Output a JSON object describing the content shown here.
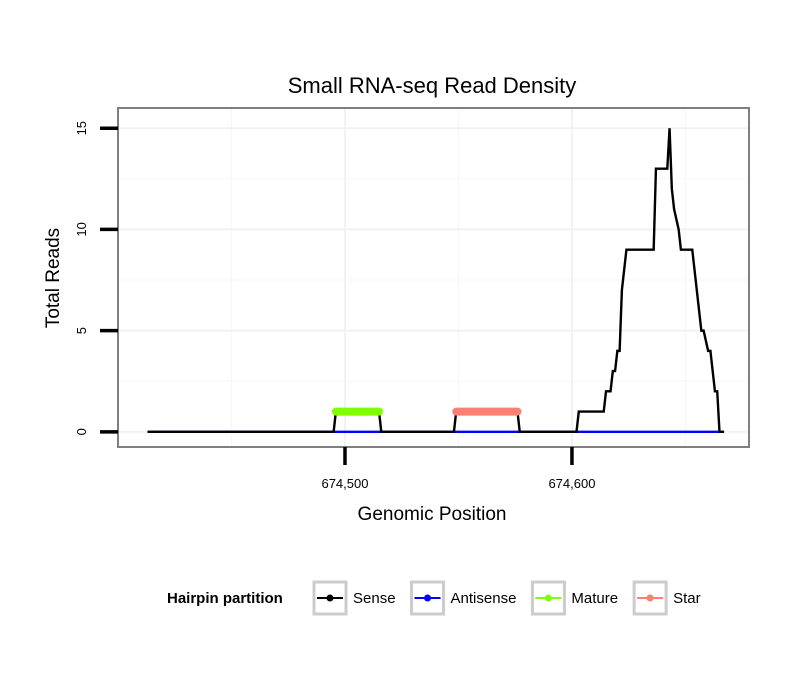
{
  "chart_data": {
    "type": "line",
    "title": "Small RNA-seq Read Density",
    "xlabel": "Genomic Position",
    "ylabel": "Total Reads",
    "xlim": [
      674400,
      674678
    ],
    "ylim": [
      -0.75,
      16
    ],
    "x_ticks": [
      674500,
      674600
    ],
    "x_tick_labels": [
      "674,500",
      "674,600"
    ],
    "y_ticks": [
      0,
      5,
      10,
      15
    ],
    "y_tick_labels": [
      "0",
      "5",
      "10",
      "15"
    ],
    "grid": true,
    "legend_title": "Hairpin partition",
    "legend_position": "bottom",
    "series": [
      {
        "name": "Sense",
        "color": "#000000",
        "x": [
          674413,
          674495,
          674496,
          674515,
          674516,
          674548,
          674549,
          674576,
          674577,
          674602,
          674603,
          674614,
          674615,
          674617,
          674618,
          674619,
          674620,
          674621,
          674622,
          674623,
          674624,
          674626,
          674627,
          674636,
          674637,
          674642,
          674643,
          674644,
          674645,
          674647,
          674648,
          674653,
          674654,
          674655,
          674656,
          674657,
          674658,
          674660,
          674661,
          674662,
          674663,
          674664,
          674665,
          674667
        ],
        "y": [
          0,
          0,
          1,
          1,
          0,
          0,
          1,
          1,
          0,
          0,
          1,
          1,
          2,
          2,
          3,
          3,
          4,
          4,
          7,
          8,
          9,
          9,
          9,
          9,
          13,
          13,
          15,
          12,
          11,
          10,
          9,
          9,
          8,
          7,
          6,
          5,
          5,
          4,
          4,
          3,
          2,
          2,
          0,
          0
        ]
      },
      {
        "name": "Antisense",
        "color": "#0000ff",
        "x": [
          674413,
          674667
        ],
        "y": [
          0,
          0
        ]
      },
      {
        "name": "Mature",
        "color": "#80ff00",
        "x": [
          674496,
          674515
        ],
        "y": [
          1,
          1
        ]
      },
      {
        "name": "Star",
        "color": "#fa8072",
        "x": [
          674549,
          674576
        ],
        "y": [
          1,
          1
        ]
      }
    ]
  }
}
